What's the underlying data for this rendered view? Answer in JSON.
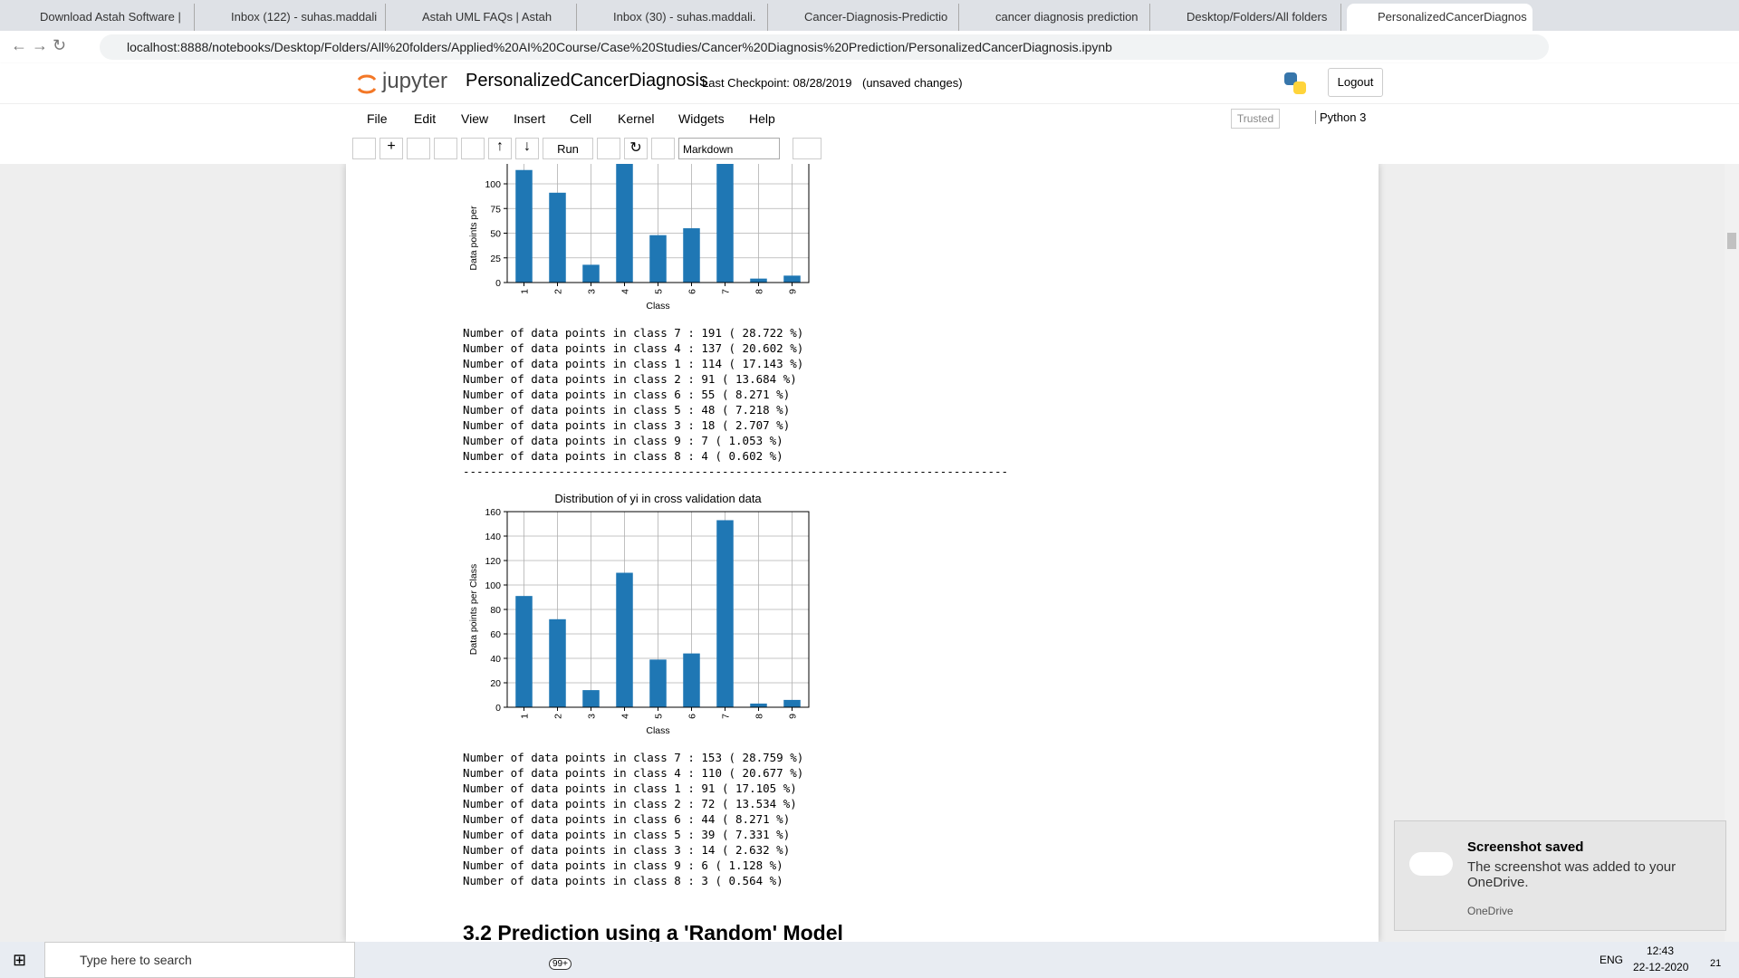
{
  "browser": {
    "tabs": [
      "Download Astah Software |",
      "Inbox (122) - suhas.maddali",
      "Astah UML FAQs | Astah",
      "Inbox (30) - suhas.maddali.",
      "Cancer-Diagnosis-Predictio",
      "cancer diagnosis prediction",
      "Desktop/Folders/All folders",
      "PersonalizedCancerDiagnos"
    ],
    "url": "localhost:8888/notebooks/Desktop/Folders/All%20folders/Applied%20AI%20Course/Case%20Studies/Cancer%20Diagnosis%20Prediction/PersonalizedCancerDiagnosis.ipynb"
  },
  "jupyter": {
    "logo": "jupyter",
    "notebook": "PersonalizedCancerDiagnosis",
    "checkpoint": "Last Checkpoint: 08/28/2019",
    "status": "(unsaved changes)",
    "logout": "Logout",
    "menu": [
      "File",
      "Edit",
      "View",
      "Insert",
      "Cell",
      "Kernel",
      "Widgets",
      "Help"
    ],
    "trusted": "Trusted",
    "kernel": "Python 3",
    "run": "Run",
    "cell_type": "Markdown"
  },
  "chart_data": [
    {
      "type": "bar",
      "ylabel": "Data points per",
      "xlabel": "Class",
      "categories": [
        "1",
        "2",
        "3",
        "4",
        "5",
        "6",
        "7",
        "8",
        "9"
      ],
      "values": [
        114,
        91,
        18,
        137,
        48,
        55,
        191,
        4,
        7
      ],
      "color": "#1f77b4",
      "ylim": [
        0,
        200
      ],
      "yticks": [
        0,
        25,
        50,
        75,
        100
      ],
      "grid": true
    },
    {
      "type": "bar",
      "title": "Distribution of yi in cross validation data",
      "ylabel": "Data points per Class",
      "xlabel": "Class",
      "categories": [
        "1",
        "2",
        "3",
        "4",
        "5",
        "6",
        "7",
        "8",
        "9"
      ],
      "values": [
        91,
        72,
        14,
        110,
        39,
        44,
        153,
        3,
        6
      ],
      "color": "#1f77b4",
      "ylim": [
        0,
        160
      ],
      "yticks": [
        0,
        20,
        40,
        60,
        80,
        100,
        120,
        140,
        160
      ],
      "grid": true
    }
  ],
  "outputs": {
    "block1": [
      "Number of data points in class 7 : 191 ( 28.722 %)",
      "Number of data points in class 4 : 137 ( 20.602 %)",
      "Number of data points in class 1 : 114 ( 17.143 %)",
      "Number of data points in class 2 : 91 ( 13.684 %)",
      "Number of data points in class 6 : 55 ( 8.271 %)",
      "Number of data points in class 5 : 48 ( 7.218 %)",
      "Number of data points in class 3 : 18 ( 2.707 %)",
      "Number of data points in class 9 : 7 ( 1.053 %)",
      "Number of data points in class 8 : 4 ( 0.602 %)"
    ],
    "separator": "--------------------------------------------------------------------------------",
    "block2": [
      "Number of data points in class 7 : 153 ( 28.759 %)",
      "Number of data points in class 4 : 110 ( 20.677 %)",
      "Number of data points in class 1 : 91 ( 17.105 %)",
      "Number of data points in class 2 : 72 ( 13.534 %)",
      "Number of data points in class 6 : 44 ( 8.271 %)",
      "Number of data points in class 5 : 39 ( 7.331 %)",
      "Number of data points in class 3 : 14 ( 2.632 %)",
      "Number of data points in class 9 : 6 ( 1.128 %)",
      "Number of data points in class 8 : 3 ( 0.564 %)"
    ]
  },
  "heading": "3.2 Prediction using a 'Random' Model",
  "notification": {
    "title": "Screenshot saved",
    "body": "The screenshot was added to your OneDrive.",
    "source": "OneDrive"
  },
  "taskbar": {
    "search": "Type here to search",
    "mail_badge": "99+",
    "language": "ENG",
    "time": "12:43",
    "date": "22-12-2020",
    "notifications": "21"
  }
}
